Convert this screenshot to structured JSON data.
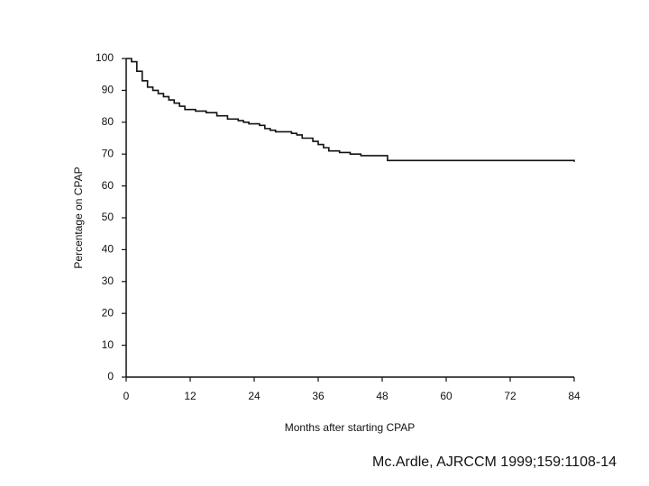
{
  "chart_data": {
    "type": "line",
    "step": "post",
    "x_label": "Months after starting CPAP",
    "y_label": "Percentage on CPAP",
    "x": [
      0,
      1,
      2,
      3,
      4,
      5,
      6,
      7,
      8,
      9,
      10,
      11,
      13,
      15,
      17,
      19,
      21,
      22,
      23,
      25,
      26,
      27,
      28,
      31,
      32,
      33,
      35,
      36,
      37,
      38,
      40,
      42,
      44,
      49,
      84
    ],
    "values": [
      100,
      99,
      96,
      93,
      91,
      90,
      89,
      88,
      87,
      86,
      85,
      84,
      83.5,
      83,
      82,
      81,
      80.5,
      80,
      79.5,
      79,
      78,
      77.5,
      77,
      76.5,
      76,
      75,
      74,
      73,
      72,
      71,
      70.5,
      70,
      69.5,
      68,
      67.6
    ],
    "color": "#111111",
    "xlim": [
      0,
      84
    ],
    "xticks": [
      0,
      12,
      24,
      36,
      48,
      60,
      72,
      84
    ],
    "ylim": [
      0,
      100
    ],
    "yticks": [
      0,
      10,
      20,
      30,
      40,
      50,
      60,
      70,
      80,
      90,
      100
    ],
    "grid": false
  },
  "citation": "Mc.Ardle, AJRCCM 1999;159:1108-14"
}
